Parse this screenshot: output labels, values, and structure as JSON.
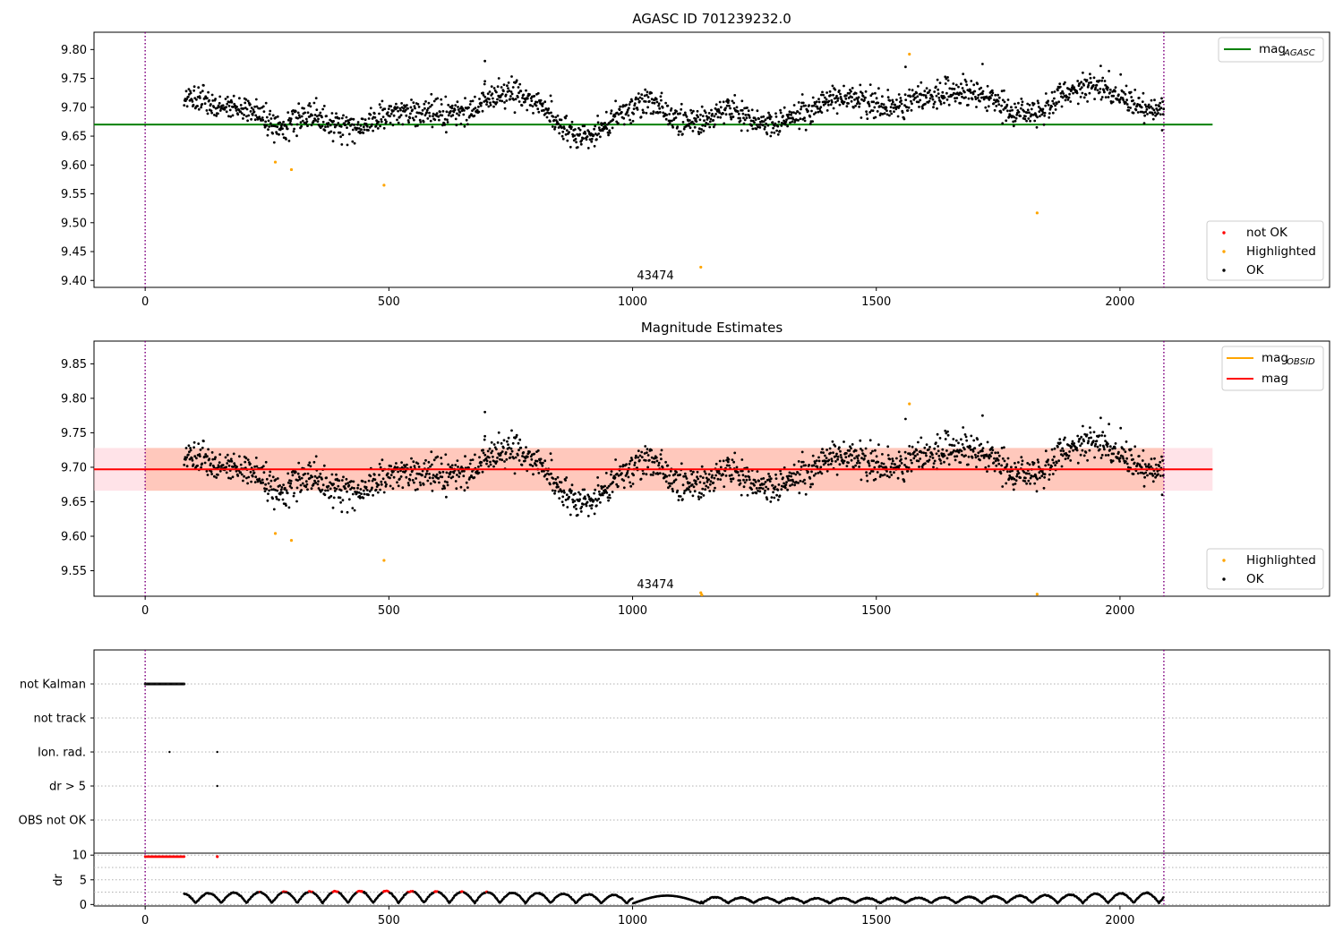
{
  "colors": {
    "ok": "#000000",
    "highlighted": "#ffa500",
    "not_ok": "#ff0000",
    "agasc_line": "#008000",
    "mag_line": "#ff0000",
    "obsid_line": "#ffa500",
    "vline": "#800080",
    "band_pink": "#ffc0cb",
    "band_orange": "#ffa07a"
  },
  "chart_data": [
    {
      "id": "top",
      "type": "scatter",
      "title": "AGASC ID 701239232.0",
      "xlim": [
        -105,
        2430
      ],
      "ylim": [
        9.388,
        9.83
      ],
      "xticks": [
        0,
        500,
        1000,
        1500,
        2000
      ],
      "yticks": [
        9.4,
        9.45,
        9.5,
        9.55,
        9.6,
        9.65,
        9.7,
        9.75,
        9.8
      ],
      "yticklabels": [
        "9.40",
        "9.45",
        "9.50",
        "9.55",
        "9.60",
        "9.65",
        "9.70",
        "9.75",
        "9.80"
      ],
      "vlines": [
        0,
        2090
      ],
      "hline": {
        "y": 9.67,
        "x0": -105,
        "x1": 2190
      },
      "obsid_annotation": {
        "x": 1045,
        "y": 9.398,
        "text": "43474"
      },
      "highlighted_points": [
        [
          267,
          9.605
        ],
        [
          300,
          9.592
        ],
        [
          490,
          9.565
        ],
        [
          1140,
          9.423
        ],
        [
          1568,
          9.792
        ],
        [
          1830,
          9.517
        ]
      ],
      "legend_top": [
        {
          "label": "mag",
          "sub": "AGASC",
          "style": "line",
          "color": "#008000"
        }
      ],
      "legend_bottom": [
        {
          "label": "not OK",
          "style": "dot",
          "color": "#ff0000"
        },
        {
          "label": "Highlighted",
          "style": "dot",
          "color": "#ffa500"
        },
        {
          "label": "OK",
          "style": "dot",
          "color": "#000000"
        }
      ]
    },
    {
      "id": "middle",
      "type": "scatter",
      "title": "Magnitude Estimates",
      "xlim": [
        -105,
        2430
      ],
      "ylim": [
        9.513,
        9.883
      ],
      "xticks": [
        0,
        500,
        1000,
        1500,
        2000
      ],
      "yticks": [
        9.55,
        9.6,
        9.65,
        9.7,
        9.75,
        9.8,
        9.85
      ],
      "yticklabels": [
        "9.55",
        "9.60",
        "9.65",
        "9.70",
        "9.75",
        "9.80",
        "9.85"
      ],
      "vlines": [
        0,
        2090
      ],
      "hline": {
        "y": 9.697,
        "x0": -105,
        "x1": 2190
      },
      "band_pink": {
        "y0": 9.666,
        "y1": 9.728,
        "x0": -105,
        "x1": 2190
      },
      "band_orange": {
        "y0": 9.666,
        "y1": 9.728,
        "x0": 0,
        "x1": 2090
      },
      "obsid_annotation": {
        "x": 1045,
        "y": 9.524,
        "text": "43474"
      },
      "highlighted_points": [
        [
          267,
          9.604
        ],
        [
          300,
          9.594
        ],
        [
          490,
          9.565
        ],
        [
          1140,
          9.518
        ],
        [
          1142,
          9.515
        ],
        [
          1568,
          9.792
        ],
        [
          1830,
          9.516
        ]
      ],
      "legend_top": [
        {
          "label": "mag",
          "sub": "OBSID",
          "style": "line",
          "color": "#ffa500"
        },
        {
          "label": "mag",
          "sub": "",
          "style": "line",
          "color": "#ff0000"
        }
      ],
      "legend_bottom": [
        {
          "label": "Highlighted",
          "style": "dot",
          "color": "#ffa500"
        },
        {
          "label": "OK",
          "style": "dot",
          "color": "#000000"
        }
      ]
    },
    {
      "id": "flags",
      "type": "scatter",
      "xlim": [
        -105,
        2430
      ],
      "categories": [
        "not Kalman",
        "not track",
        "Ion. rad.",
        "dr > 5",
        "OBS not OK"
      ],
      "vlines": [
        0,
        2090
      ],
      "flag_points": {
        "not Kalman": {
          "x0": 0,
          "x1": 80,
          "step": 2
        },
        "not track": {
          "points": []
        },
        "Ion. rad.": {
          "points": [
            50,
            148
          ]
        },
        "dr > 5": {
          "points": [
            148
          ]
        },
        "OBS not OK": {
          "points": []
        }
      }
    },
    {
      "id": "dr",
      "type": "scatter",
      "ylabel": "dr",
      "xlim": [
        -105,
        2430
      ],
      "ylim": [
        -0.3,
        10.4
      ],
      "xticks": [
        0,
        500,
        1000,
        1500,
        2000
      ],
      "xticklabels": [
        "0",
        "500",
        "1000",
        "1500",
        "2000"
      ],
      "yticks": [
        0,
        5,
        10
      ],
      "yticklabels": [
        "0",
        "5",
        "10"
      ],
      "vlines": [
        0,
        2090
      ],
      "high_points": {
        "x0": 0,
        "x1": 80,
        "step": 2,
        "y": 9.7,
        "extra": [
          [
            148,
            9.7
          ]
        ]
      }
    }
  ]
}
